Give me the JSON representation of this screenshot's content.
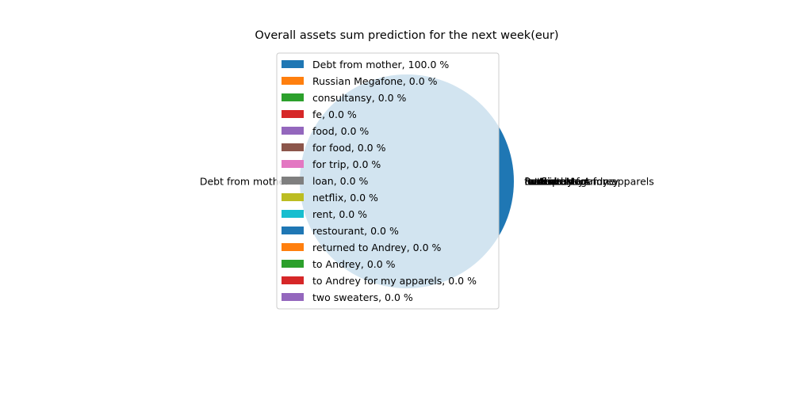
{
  "chart_data": {
    "type": "pie",
    "title": "Overall assets sum prediction for the next week(eur)",
    "slices": [
      {
        "label": "Debt from mother",
        "value": 100.0,
        "color": "#1f77b4"
      },
      {
        "label": "Russian Megafone",
        "value": 0.0,
        "color": "#ff7f0e"
      },
      {
        "label": "consultansy",
        "value": 0.0,
        "color": "#2ca02c"
      },
      {
        "label": "fe",
        "value": 0.0,
        "color": "#d62728"
      },
      {
        "label": "food",
        "value": 0.0,
        "color": "#9467bd"
      },
      {
        "label": "for food",
        "value": 0.0,
        "color": "#8c564b"
      },
      {
        "label": "for trip",
        "value": 0.0,
        "color": "#e377c2"
      },
      {
        "label": "loan",
        "value": 0.0,
        "color": "#7f7f7f"
      },
      {
        "label": "netflix",
        "value": 0.0,
        "color": "#bcbd22"
      },
      {
        "label": "rent",
        "value": 0.0,
        "color": "#17becf"
      },
      {
        "label": "restourant",
        "value": 0.0,
        "color": "#1f77b4"
      },
      {
        "label": "returned to Andrey",
        "value": 0.0,
        "color": "#ff7f0e"
      },
      {
        "label": "to Andrey",
        "value": 0.0,
        "color": "#2ca02c"
      },
      {
        "label": "to Andrey for my apparels",
        "value": 0.0,
        "color": "#d62728"
      },
      {
        "label": "two sweaters",
        "value": 0.0,
        "color": "#9467bd"
      }
    ],
    "legend": {
      "placement": "upper-center",
      "entries": [
        "Debt from mother, 100.0 %",
        "Russian Megafone, 0.0 %",
        "consultansy, 0.0 %",
        "fe, 0.0 %",
        "food, 0.0 %",
        "for food, 0.0 %",
        "for trip, 0.0 %",
        "loan, 0.0 %",
        "netflix, 0.0 %",
        "rent, 0.0 %",
        "restourant, 0.0 %",
        "returned to Andrey, 0.0 %",
        "to Andrey, 0.0 %",
        "to Andrey for my apparels, 0.0 %",
        "two sweaters, 0.0 %"
      ]
    }
  }
}
